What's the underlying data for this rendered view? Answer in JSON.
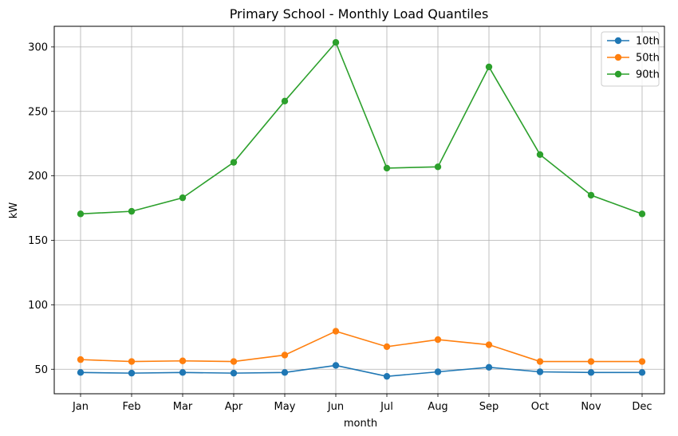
{
  "chart_data": {
    "type": "line",
    "title": "Primary School - Monthly Load Quantiles",
    "xlabel": "month",
    "ylabel": "kW",
    "categories": [
      "Jan",
      "Feb",
      "Mar",
      "Apr",
      "May",
      "Jun",
      "Jul",
      "Aug",
      "Sep",
      "Oct",
      "Nov",
      "Dec"
    ],
    "ylim": [
      31,
      316
    ],
    "yticks": [
      50,
      100,
      150,
      200,
      250,
      300
    ],
    "grid": true,
    "legend_position": "top-right",
    "series": [
      {
        "name": "10th",
        "color": "#1f77b4",
        "values": [
          47.5,
          47,
          47.5,
          47,
          47.5,
          53,
          44.5,
          48,
          51.5,
          48,
          47.5,
          47.5
        ]
      },
      {
        "name": "50th",
        "color": "#ff7f0e",
        "values": [
          57.5,
          56,
          56.5,
          56,
          61,
          79.5,
          67.5,
          73,
          69,
          56,
          56,
          56
        ]
      },
      {
        "name": "90th",
        "color": "#2ca02c",
        "values": [
          170.5,
          172.5,
          183,
          210.5,
          258,
          303.5,
          206,
          207,
          284.5,
          216.5,
          185,
          170.5
        ]
      }
    ]
  }
}
